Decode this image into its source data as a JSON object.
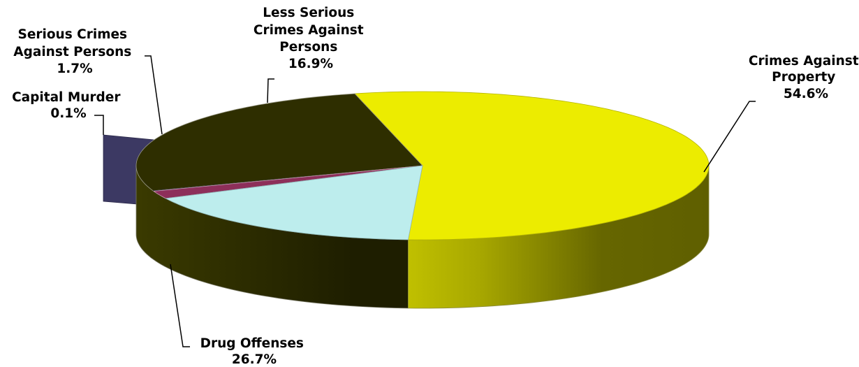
{
  "chart_data": {
    "type": "pie",
    "style": "3d",
    "title": "",
    "categories": [
      "Crimes Against Property",
      "Drug Offenses",
      "Capital Murder",
      "Serious Crimes Against Persons",
      "Less Serious Crimes Against Persons"
    ],
    "values": [
      54.6,
      26.7,
      0.1,
      1.7,
      16.9
    ],
    "unit": "%",
    "exploded": [
      "Capital Murder"
    ],
    "legend": "none",
    "colors": {
      "crimes_against_property": "#ecec00",
      "drug_offenses": "#2e2e00",
      "capital_murder": "#3c3963",
      "serious_crimes_against_persons": "#8d2f5a",
      "less_serious_crimes_against_persons": "#bdeded"
    }
  },
  "labels": {
    "property": {
      "lines": [
        "Crimes Against",
        "Property"
      ],
      "pct": "54.6%"
    },
    "drug": {
      "lines": [
        "Drug Offenses"
      ],
      "pct": "26.7%"
    },
    "capital": {
      "lines": [
        "Capital Murder"
      ],
      "pct": "0.1%"
    },
    "serious": {
      "lines": [
        "Serious Crimes",
        "Against Persons"
      ],
      "pct": "1.7%"
    },
    "less": {
      "lines": [
        "Less Serious",
        "Crimes Against",
        "Persons"
      ],
      "pct": "16.9%"
    }
  }
}
